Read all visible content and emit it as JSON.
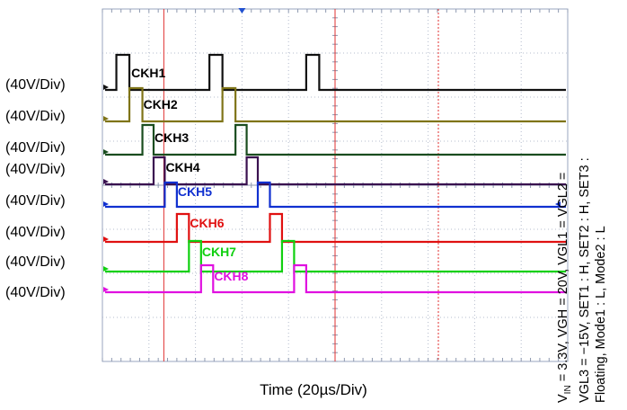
{
  "chart_data": {
    "type": "line",
    "title": "",
    "xlabel": "Time  (20µs/Div)",
    "x_divisions": 10,
    "x_range": [
      0,
      10
    ],
    "x_unit": "div",
    "y_label_per_channel": "(40V/Div)",
    "grid": true,
    "series": [
      {
        "name": "CKH1",
        "color": "#111111",
        "label_color": "#000000",
        "high_intervals": [
          [
            0.3,
            0.58
          ],
          [
            2.3,
            2.58
          ],
          [
            4.38,
            4.66
          ]
        ]
      },
      {
        "name": "CKH2",
        "color": "#7f7418",
        "label_color": "#000000",
        "high_intervals": [
          [
            0.58,
            0.86
          ],
          [
            2.58,
            2.86
          ]
        ]
      },
      {
        "name": "CKH3",
        "color": "#1a4d1f",
        "label_color": "#000000",
        "high_intervals": [
          [
            0.86,
            1.1
          ],
          [
            2.86,
            3.1
          ]
        ]
      },
      {
        "name": "CKH4",
        "color": "#3a1150",
        "label_color": "#000000",
        "high_intervals": [
          [
            1.1,
            1.34
          ],
          [
            3.1,
            3.34
          ]
        ]
      },
      {
        "name": "CKH5",
        "color": "#1030d0",
        "label_color": "#1030d0",
        "high_intervals": [
          [
            1.34,
            1.6
          ],
          [
            3.34,
            3.6
          ]
        ]
      },
      {
        "name": "CKH6",
        "color": "#e01010",
        "label_color": "#e01010",
        "high_intervals": [
          [
            1.6,
            1.86
          ],
          [
            3.6,
            3.86
          ]
        ]
      },
      {
        "name": "CKH7",
        "color": "#10d010",
        "label_color": "#10d010",
        "high_intervals": [
          [
            1.86,
            2.12
          ],
          [
            3.86,
            4.12
          ]
        ]
      },
      {
        "name": "CKH8",
        "color": "#e010e0",
        "label_color": "#e010e0",
        "high_intervals": [
          [
            2.12,
            2.38
          ],
          [
            4.12,
            4.38
          ]
        ]
      }
    ],
    "cursors": [
      1.32,
      5.0,
      7.22
    ],
    "annotation_lines": [
      "V_IN = 3.3V, VGH = 20V, VGL1 = VGL2 =",
      "VGL3 = −15V, SET1 : H, SET2 : H, SET3 :",
      "Floating, Mode1 : L, Mode2 : L"
    ]
  },
  "annotation": {
    "vin_sym": "V",
    "vin_sub": "IN",
    "line1_rest": " = 3.3V, VGH = 20V, VGL1 = VGL2 =",
    "line2": "VGL3 = −15V, SET1 : H, SET2 : H, SET3 :",
    "line3": "Floating, Mode1 : L, Mode2 : L"
  }
}
